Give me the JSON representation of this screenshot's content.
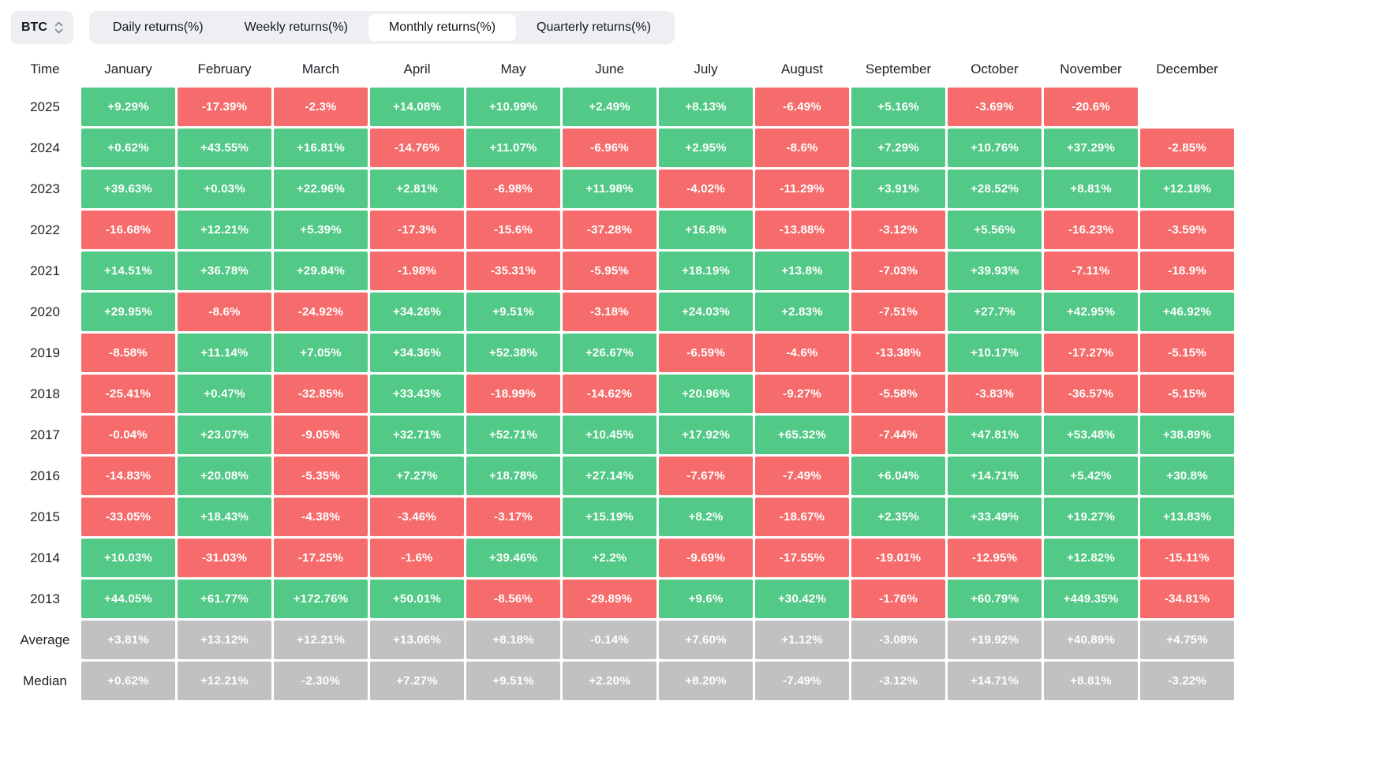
{
  "toolbar": {
    "coin_selector": {
      "value": "BTC"
    },
    "tabs": [
      {
        "label": "Daily returns(%)",
        "active": false
      },
      {
        "label": "Weekly returns(%)",
        "active": false
      },
      {
        "label": "Monthly returns(%)",
        "active": true
      },
      {
        "label": "Quarterly returns(%)",
        "active": false
      }
    ]
  },
  "colors": {
    "positive": "#52c986",
    "negative": "#f66c6c",
    "summary": "#c1c1c1"
  },
  "chart_data": {
    "type": "heatmap",
    "title": "BTC Monthly returns(%)",
    "row_header": "Time",
    "columns": [
      "January",
      "February",
      "March",
      "April",
      "May",
      "June",
      "July",
      "August",
      "September",
      "October",
      "November",
      "December"
    ],
    "rows": [
      {
        "label": "2025",
        "summary": false,
        "values": [
          "+9.29%",
          "-17.39%",
          "-2.3%",
          "+14.08%",
          "+10.99%",
          "+2.49%",
          "+8.13%",
          "-6.49%",
          "+5.16%",
          "-3.69%",
          "-20.6%",
          null
        ]
      },
      {
        "label": "2024",
        "summary": false,
        "values": [
          "+0.62%",
          "+43.55%",
          "+16.81%",
          "-14.76%",
          "+11.07%",
          "-6.96%",
          "+2.95%",
          "-8.6%",
          "+7.29%",
          "+10.76%",
          "+37.29%",
          "-2.85%"
        ]
      },
      {
        "label": "2023",
        "summary": false,
        "values": [
          "+39.63%",
          "+0.03%",
          "+22.96%",
          "+2.81%",
          "-6.98%",
          "+11.98%",
          "-4.02%",
          "-11.29%",
          "+3.91%",
          "+28.52%",
          "+8.81%",
          "+12.18%"
        ]
      },
      {
        "label": "2022",
        "summary": false,
        "values": [
          "-16.68%",
          "+12.21%",
          "+5.39%",
          "-17.3%",
          "-15.6%",
          "-37.28%",
          "+16.8%",
          "-13.88%",
          "-3.12%",
          "+5.56%",
          "-16.23%",
          "-3.59%"
        ]
      },
      {
        "label": "2021",
        "summary": false,
        "values": [
          "+14.51%",
          "+36.78%",
          "+29.84%",
          "-1.98%",
          "-35.31%",
          "-5.95%",
          "+18.19%",
          "+13.8%",
          "-7.03%",
          "+39.93%",
          "-7.11%",
          "-18.9%"
        ]
      },
      {
        "label": "2020",
        "summary": false,
        "values": [
          "+29.95%",
          "-8.6%",
          "-24.92%",
          "+34.26%",
          "+9.51%",
          "-3.18%",
          "+24.03%",
          "+2.83%",
          "-7.51%",
          "+27.7%",
          "+42.95%",
          "+46.92%"
        ]
      },
      {
        "label": "2019",
        "summary": false,
        "values": [
          "-8.58%",
          "+11.14%",
          "+7.05%",
          "+34.36%",
          "+52.38%",
          "+26.67%",
          "-6.59%",
          "-4.6%",
          "-13.38%",
          "+10.17%",
          "-17.27%",
          "-5.15%"
        ]
      },
      {
        "label": "2018",
        "summary": false,
        "values": [
          "-25.41%",
          "+0.47%",
          "-32.85%",
          "+33.43%",
          "-18.99%",
          "-14.62%",
          "+20.96%",
          "-9.27%",
          "-5.58%",
          "-3.83%",
          "-36.57%",
          "-5.15%"
        ]
      },
      {
        "label": "2017",
        "summary": false,
        "values": [
          "-0.04%",
          "+23.07%",
          "-9.05%",
          "+32.71%",
          "+52.71%",
          "+10.45%",
          "+17.92%",
          "+65.32%",
          "-7.44%",
          "+47.81%",
          "+53.48%",
          "+38.89%"
        ]
      },
      {
        "label": "2016",
        "summary": false,
        "values": [
          "-14.83%",
          "+20.08%",
          "-5.35%",
          "+7.27%",
          "+18.78%",
          "+27.14%",
          "-7.67%",
          "-7.49%",
          "+6.04%",
          "+14.71%",
          "+5.42%",
          "+30.8%"
        ]
      },
      {
        "label": "2015",
        "summary": false,
        "values": [
          "-33.05%",
          "+18.43%",
          "-4.38%",
          "-3.46%",
          "-3.17%",
          "+15.19%",
          "+8.2%",
          "-18.67%",
          "+2.35%",
          "+33.49%",
          "+19.27%",
          "+13.83%"
        ]
      },
      {
        "label": "2014",
        "summary": false,
        "values": [
          "+10.03%",
          "-31.03%",
          "-17.25%",
          "-1.6%",
          "+39.46%",
          "+2.2%",
          "-9.69%",
          "-17.55%",
          "-19.01%",
          "-12.95%",
          "+12.82%",
          "-15.11%"
        ]
      },
      {
        "label": "2013",
        "summary": false,
        "values": [
          "+44.05%",
          "+61.77%",
          "+172.76%",
          "+50.01%",
          "-8.56%",
          "-29.89%",
          "+9.6%",
          "+30.42%",
          "-1.76%",
          "+60.79%",
          "+449.35%",
          "-34.81%"
        ]
      },
      {
        "label": "Average",
        "summary": true,
        "values": [
          "+3.81%",
          "+13.12%",
          "+12.21%",
          "+13.06%",
          "+8.18%",
          "-0.14%",
          "+7.60%",
          "+1.12%",
          "-3.08%",
          "+19.92%",
          "+40.89%",
          "+4.75%"
        ]
      },
      {
        "label": "Median",
        "summary": true,
        "values": [
          "+0.62%",
          "+12.21%",
          "-2.30%",
          "+7.27%",
          "+9.51%",
          "+2.20%",
          "+8.20%",
          "-7.49%",
          "-3.12%",
          "+14.71%",
          "+8.81%",
          "-3.22%"
        ]
      }
    ]
  }
}
